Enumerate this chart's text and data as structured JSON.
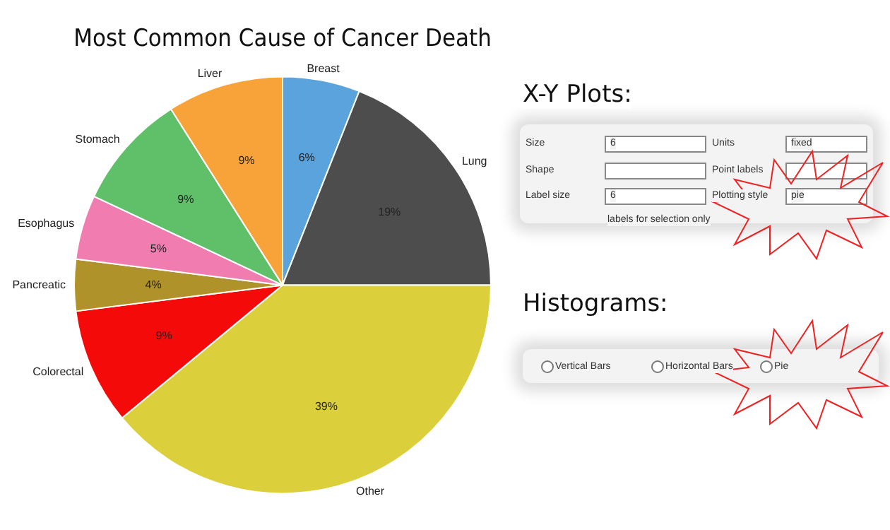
{
  "chart_data": {
    "type": "pie",
    "title": "Most Common Cause of Cancer Death",
    "categories": [
      "Breast",
      "Lung",
      "Other",
      "Colorectal",
      "Pancreatic",
      "Esophagus",
      "Stomach",
      "Liver"
    ],
    "values": [
      6,
      19,
      39,
      9,
      4,
      5,
      9,
      9
    ],
    "colors": [
      "#5ba3dc",
      "#4d4d4d",
      "#dccf3c",
      "#f50a0a",
      "#b0922a",
      "#f07cb0",
      "#60c06a",
      "#f7a33a"
    ],
    "value_labels": [
      "6%",
      "19%",
      "39%",
      "9%",
      "4%",
      "5%",
      "9%",
      "9%"
    ],
    "legend": false,
    "annotations": [
      "X-Y Plots:",
      "Size",
      "6",
      "Units",
      "fixed",
      "Shape",
      "Point labels",
      "Label size",
      "6",
      "Plotting style",
      "pie",
      "labels for selection only",
      "Histograms:",
      "Vertical Bars",
      "Horizontal Bars",
      "Pie"
    ]
  }
}
